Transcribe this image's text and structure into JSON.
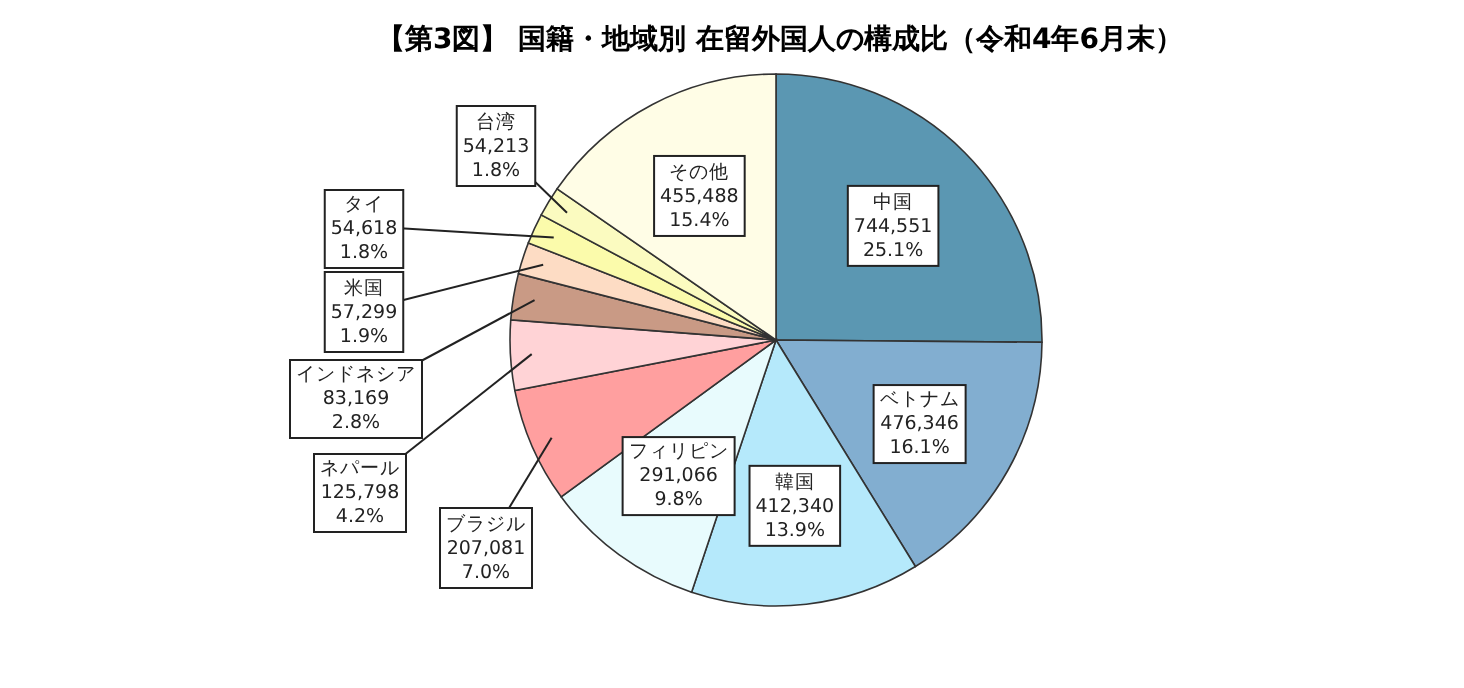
{
  "chart_data": {
    "type": "pie",
    "title": "【第3図】 国籍・地域別  在留外国人の構成比（令和4年6月末）",
    "categories": [
      "中国",
      "ベトナム",
      "韓国",
      "フィリピン",
      "ブラジル",
      "ネパール",
      "インドネシア",
      "米国",
      "タイ",
      "台湾",
      "その他"
    ],
    "values": [
      744551,
      476346,
      412340,
      291066,
      207081,
      125798,
      83169,
      57299,
      54618,
      54213,
      455488
    ],
    "value_labels": [
      "744,551\n25.1%",
      "476,346\n16.1%",
      "412,340\n13.9%",
      "291,066\n9.8%",
      "207,081\n7.0%",
      "125,798\n4.2%",
      "83,169\n2.8%",
      "57,299\n1.9%",
      "54,618\n1.8%",
      "54,213\n1.8%",
      "455,488\n15.4%"
    ],
    "colors": [
      "#5b97b2",
      "#82aed0",
      "#b5e9fb",
      "#e8fbfd",
      "#ff9f9f",
      "#ffd3d6",
      "#c99a85",
      "#fddcc4",
      "#fbfbab",
      "#fbfbc0",
      "#fffde6"
    ]
  }
}
